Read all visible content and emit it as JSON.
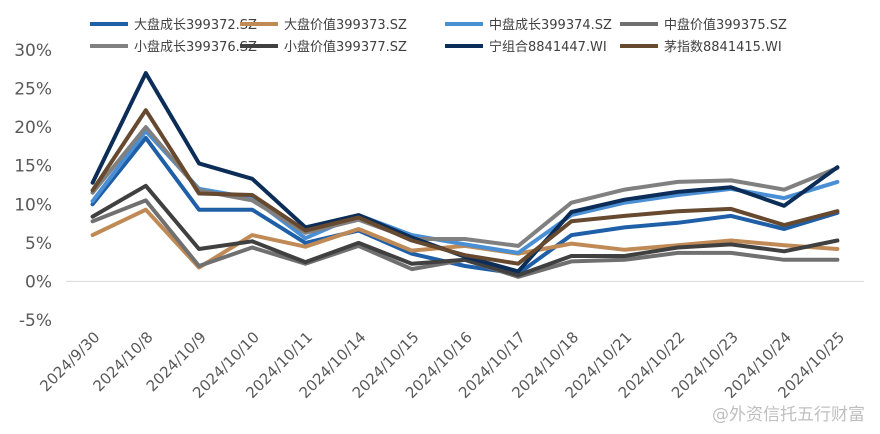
{
  "chart_data": {
    "type": "line",
    "title": "",
    "xlabel": "",
    "ylabel": "",
    "ylim": [
      -5,
      30
    ],
    "y_ticks": [
      "-5%",
      "0%",
      "5%",
      "10%",
      "15%",
      "20%",
      "25%",
      "30%"
    ],
    "y_tick_values": [
      -5,
      0,
      5,
      10,
      15,
      20,
      25,
      30
    ],
    "grid": false,
    "legend_position": "top",
    "categories": [
      "2024/9/30",
      "2024/10/8",
      "2024/10/9",
      "2024/10/10",
      "2024/10/11",
      "2024/10/14",
      "2024/10/15",
      "2024/10/16",
      "2024/10/17",
      "2024/10/18",
      "2024/10/21",
      "2024/10/22",
      "2024/10/23",
      "2024/10/24",
      "2024/10/25"
    ],
    "series": [
      {
        "name": "大盘成长399372.SZ",
        "color": "#1f5fa8",
        "values": [
          10.0,
          18.6,
          9.3,
          9.3,
          5.0,
          6.6,
          3.6,
          2.0,
          1.0,
          6.0,
          7.0,
          7.6,
          8.5,
          6.8,
          8.9
        ]
      },
      {
        "name": "大盘价值399373.SZ",
        "color": "#bf8a55",
        "values": [
          6.0,
          9.3,
          1.8,
          6.0,
          4.5,
          6.8,
          4.0,
          4.6,
          3.6,
          4.9,
          4.1,
          4.7,
          5.3,
          4.7,
          4.2
        ]
      },
      {
        "name": "中盘成长399374.SZ",
        "color": "#4a8fd4",
        "values": [
          10.4,
          19.5,
          12.0,
          10.8,
          5.6,
          8.6,
          6.0,
          4.8,
          3.7,
          8.6,
          10.2,
          11.2,
          12.0,
          10.8,
          12.9
        ]
      },
      {
        "name": "中盘价值399375.SZ",
        "color": "#707070",
        "values": [
          7.8,
          10.5,
          2.0,
          4.4,
          2.3,
          4.6,
          1.6,
          2.8,
          0.6,
          2.6,
          2.8,
          3.7,
          3.7,
          2.8,
          2.8
        ]
      },
      {
        "name": "小盘成长399376.SZ",
        "color": "#808080",
        "values": [
          11.5,
          20.0,
          11.8,
          10.5,
          6.3,
          8.0,
          5.5,
          5.5,
          4.6,
          10.2,
          11.9,
          12.9,
          13.1,
          11.9,
          14.7
        ]
      },
      {
        "name": "小盘价值399377.SZ",
        "color": "#404040",
        "values": [
          8.4,
          12.4,
          4.2,
          5.2,
          2.5,
          5.0,
          2.3,
          2.8,
          0.8,
          3.3,
          3.3,
          4.4,
          4.8,
          3.9,
          5.3
        ]
      },
      {
        "name": "宁组合8841447.WI",
        "color": "#0b2d57",
        "values": [
          12.8,
          27.0,
          15.3,
          13.3,
          7.0,
          8.6,
          5.7,
          3.2,
          1.3,
          9.0,
          10.6,
          11.6,
          12.2,
          9.8,
          14.8
        ]
      },
      {
        "name": "茅指数8841415.WI",
        "color": "#66492e",
        "values": [
          11.8,
          22.2,
          11.4,
          11.2,
          6.6,
          8.3,
          5.3,
          3.4,
          2.3,
          7.8,
          8.5,
          9.1,
          9.4,
          7.3,
          9.1
        ]
      }
    ]
  },
  "watermark": "@外资信托五行财富"
}
